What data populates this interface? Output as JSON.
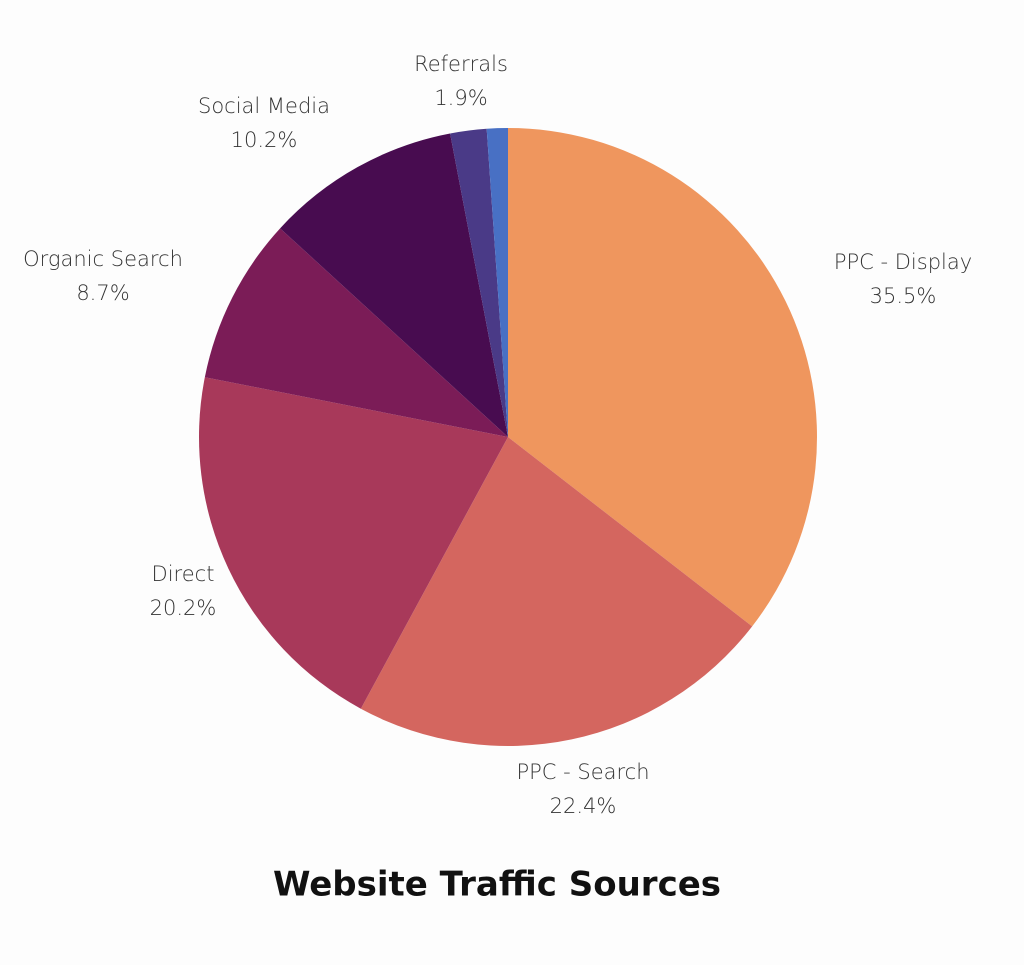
{
  "chart_data": {
    "type": "pie",
    "title": "Website Traffic Sources",
    "categories": [
      "PPC - Display",
      "PPC - Search",
      "Direct",
      "Organic Search",
      "Social Media",
      "Referrals",
      null
    ],
    "values": [
      35.5,
      22.4,
      20.2,
      8.7,
      10.2,
      1.9,
      1.1
    ],
    "value_labels": [
      "35.5%",
      "22.4%",
      "20.2%",
      "8.7%",
      "10.2%",
      "1.9%",
      null
    ],
    "colors": [
      "#ef965e",
      "#d4665f",
      "#a8395a",
      "#7b1c57",
      "#480c50",
      "#4a3a87",
      "#4870c4"
    ]
  }
}
